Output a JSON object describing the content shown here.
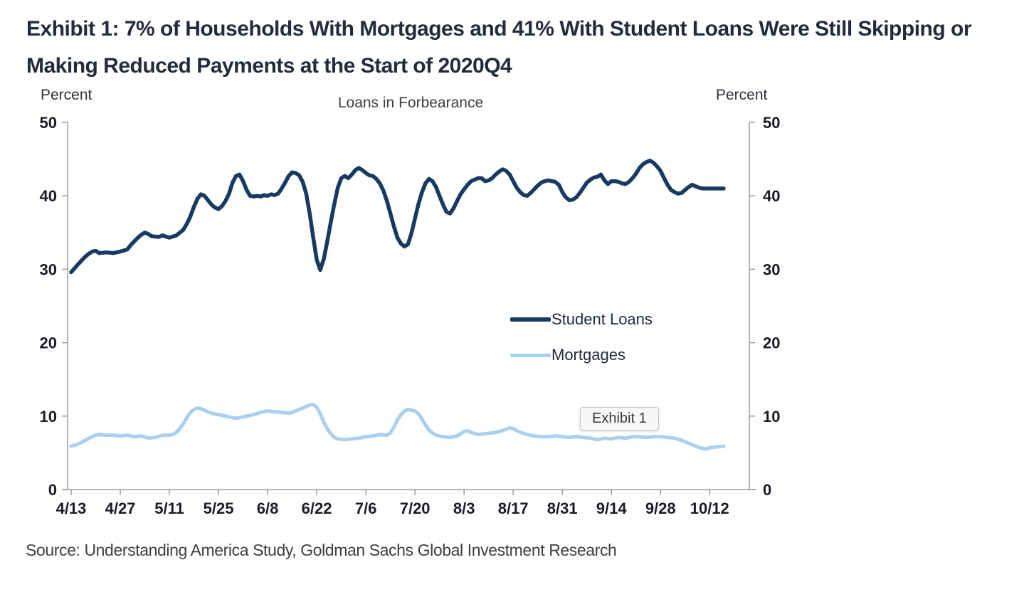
{
  "header": {
    "title_line1": "Exhibit 1: 7% of Households With Mortgages and 41% With Student Loans Were Still Skipping or",
    "title_line2": "Making Reduced Payments at the Start of 2020Q4"
  },
  "overlay": {
    "tooltip_label": "Exhibit 1"
  },
  "footer": {
    "source": "Source: Understanding America Study, Goldman Sachs Global Investment Research"
  },
  "chart_data": {
    "type": "line",
    "title": "Loans in Forbearance",
    "left_axis_label": "Percent",
    "right_axis_label": "Percent",
    "ylim": [
      0,
      50
    ],
    "y_ticks": [
      0,
      10,
      20,
      30,
      40,
      50
    ],
    "x_ticks": [
      {
        "label": "4/13",
        "day": 0
      },
      {
        "label": "4/27",
        "day": 14
      },
      {
        "label": "5/11",
        "day": 28
      },
      {
        "label": "5/25",
        "day": 42
      },
      {
        "label": "6/8",
        "day": 56
      },
      {
        "label": "6/22",
        "day": 70
      },
      {
        "label": "7/6",
        "day": 84
      },
      {
        "label": "7/20",
        "day": 98
      },
      {
        "label": "8/3",
        "day": 112
      },
      {
        "label": "8/17",
        "day": 126
      },
      {
        "label": "8/31",
        "day": 140
      },
      {
        "label": "9/14",
        "day": 154
      },
      {
        "label": "9/28",
        "day": 168
      },
      {
        "label": "10/12",
        "day": 182
      }
    ],
    "grid": false,
    "legend_position": "inside-right",
    "axis_color": "#9c9c9c",
    "tick_label_color": "#1b1b27",
    "series": [
      {
        "name": "Student Loans",
        "color": "#173A62",
        "width": 5.5,
        "points": [
          [
            0,
            29.6
          ],
          [
            2,
            30.7
          ],
          [
            4,
            31.7
          ],
          [
            5,
            32.1
          ],
          [
            6,
            32.4
          ],
          [
            7,
            32.5
          ],
          [
            8,
            32.2
          ],
          [
            10,
            32.3
          ],
          [
            12,
            32.2
          ],
          [
            14,
            32.4
          ],
          [
            16,
            32.7
          ],
          [
            17,
            33.3
          ],
          [
            18,
            33.8
          ],
          [
            19,
            34.3
          ],
          [
            20,
            34.7
          ],
          [
            21,
            35.0
          ],
          [
            22,
            34.8
          ],
          [
            23,
            34.5
          ],
          [
            25,
            34.4
          ],
          [
            26,
            34.6
          ],
          [
            28,
            34.3
          ],
          [
            30,
            34.6
          ],
          [
            32,
            35.4
          ],
          [
            33,
            36.2
          ],
          [
            34,
            37.2
          ],
          [
            35,
            38.5
          ],
          [
            36,
            39.6
          ],
          [
            37,
            40.2
          ],
          [
            38,
            40.0
          ],
          [
            39,
            39.4
          ],
          [
            40,
            38.8
          ],
          [
            41,
            38.4
          ],
          [
            42,
            38.2
          ],
          [
            43,
            38.6
          ],
          [
            44,
            39.3
          ],
          [
            45,
            40.3
          ],
          [
            46,
            41.8
          ],
          [
            47,
            42.7
          ],
          [
            48,
            42.9
          ],
          [
            49,
            42.0
          ],
          [
            50,
            40.8
          ],
          [
            51,
            40.0
          ],
          [
            52,
            39.9
          ],
          [
            53,
            40.0
          ],
          [
            54,
            39.9
          ],
          [
            55,
            40.1
          ],
          [
            56,
            40.0
          ],
          [
            57,
            40.2
          ],
          [
            58,
            40.1
          ],
          [
            59,
            40.3
          ],
          [
            60,
            41.0
          ],
          [
            61,
            41.8
          ],
          [
            62,
            42.7
          ],
          [
            63,
            43.2
          ],
          [
            64,
            43.1
          ],
          [
            65,
            42.8
          ],
          [
            66,
            41.9
          ],
          [
            67,
            40.3
          ],
          [
            68,
            37.6
          ],
          [
            69,
            34.3
          ],
          [
            70,
            31.3
          ],
          [
            71,
            29.9
          ],
          [
            72,
            31.4
          ],
          [
            73,
            33.8
          ],
          [
            74,
            36.4
          ],
          [
            75,
            38.9
          ],
          [
            76,
            41.1
          ],
          [
            77,
            42.4
          ],
          [
            78,
            42.7
          ],
          [
            79,
            42.4
          ],
          [
            80,
            42.9
          ],
          [
            81,
            43.5
          ],
          [
            82,
            43.8
          ],
          [
            83,
            43.5
          ],
          [
            84,
            43.1
          ],
          [
            85,
            42.8
          ],
          [
            86,
            42.7
          ],
          [
            87,
            42.3
          ],
          [
            88,
            41.7
          ],
          [
            89,
            40.7
          ],
          [
            90,
            39.3
          ],
          [
            91,
            37.6
          ],
          [
            92,
            35.8
          ],
          [
            93,
            34.3
          ],
          [
            94,
            33.5
          ],
          [
            95,
            33.1
          ],
          [
            96,
            33.4
          ],
          [
            97,
            34.9
          ],
          [
            98,
            36.9
          ],
          [
            99,
            38.9
          ],
          [
            100,
            40.5
          ],
          [
            101,
            41.7
          ],
          [
            102,
            42.3
          ],
          [
            103,
            42.0
          ],
          [
            104,
            41.2
          ],
          [
            105,
            40.0
          ],
          [
            106,
            38.8
          ],
          [
            107,
            37.8
          ],
          [
            108,
            37.6
          ],
          [
            109,
            38.3
          ],
          [
            110,
            39.3
          ],
          [
            111,
            40.2
          ],
          [
            112,
            40.9
          ],
          [
            113,
            41.5
          ],
          [
            114,
            42.0
          ],
          [
            115,
            42.2
          ],
          [
            116,
            42.4
          ],
          [
            117,
            42.4
          ],
          [
            118,
            42.0
          ],
          [
            119,
            42.1
          ],
          [
            120,
            42.4
          ],
          [
            121,
            42.9
          ],
          [
            122,
            43.3
          ],
          [
            123,
            43.6
          ],
          [
            124,
            43.4
          ],
          [
            125,
            42.9
          ],
          [
            126,
            42.0
          ],
          [
            127,
            41.1
          ],
          [
            128,
            40.5
          ],
          [
            129,
            40.1
          ],
          [
            130,
            40.0
          ],
          [
            131,
            40.4
          ],
          [
            132,
            40.9
          ],
          [
            133,
            41.4
          ],
          [
            134,
            41.8
          ],
          [
            135,
            42.0
          ],
          [
            136,
            42.1
          ],
          [
            137,
            42.0
          ],
          [
            138,
            41.9
          ],
          [
            139,
            41.5
          ],
          [
            140,
            40.5
          ],
          [
            141,
            39.8
          ],
          [
            142,
            39.4
          ],
          [
            143,
            39.5
          ],
          [
            144,
            39.8
          ],
          [
            145,
            40.4
          ],
          [
            146,
            41.1
          ],
          [
            147,
            41.8
          ],
          [
            148,
            42.2
          ],
          [
            149,
            42.5
          ],
          [
            150,
            42.6
          ],
          [
            151,
            42.9
          ],
          [
            152,
            42.1
          ],
          [
            153,
            41.6
          ],
          [
            154,
            42.0
          ],
          [
            155,
            42.0
          ],
          [
            156,
            41.9
          ],
          [
            157,
            41.7
          ],
          [
            158,
            41.6
          ],
          [
            159,
            41.9
          ],
          [
            160,
            42.4
          ],
          [
            161,
            43.0
          ],
          [
            162,
            43.8
          ],
          [
            163,
            44.3
          ],
          [
            164,
            44.6
          ],
          [
            165,
            44.8
          ],
          [
            166,
            44.5
          ],
          [
            167,
            44.0
          ],
          [
            168,
            43.4
          ],
          [
            169,
            42.4
          ],
          [
            170,
            41.5
          ],
          [
            171,
            40.8
          ],
          [
            172,
            40.5
          ],
          [
            173,
            40.3
          ],
          [
            174,
            40.4
          ],
          [
            175,
            40.8
          ],
          [
            176,
            41.2
          ],
          [
            177,
            41.5
          ],
          [
            178,
            41.3
          ],
          [
            179,
            41.1
          ],
          [
            180,
            41.0
          ],
          [
            182,
            41.0
          ],
          [
            184,
            41.0
          ],
          [
            186,
            41.0
          ]
        ]
      },
      {
        "name": "Mortgages",
        "color": "#A9D0EE",
        "width": 5,
        "points": [
          [
            0,
            5.9
          ],
          [
            2,
            6.2
          ],
          [
            4,
            6.7
          ],
          [
            6,
            7.2
          ],
          [
            7,
            7.4
          ],
          [
            8,
            7.5
          ],
          [
            10,
            7.4
          ],
          [
            12,
            7.4
          ],
          [
            14,
            7.3
          ],
          [
            16,
            7.4
          ],
          [
            18,
            7.2
          ],
          [
            20,
            7.3
          ],
          [
            22,
            7.0
          ],
          [
            24,
            7.1
          ],
          [
            26,
            7.4
          ],
          [
            28,
            7.4
          ],
          [
            29,
            7.5
          ],
          [
            30,
            7.8
          ],
          [
            31,
            8.3
          ],
          [
            32,
            9.0
          ],
          [
            33,
            9.8
          ],
          [
            34,
            10.5
          ],
          [
            35,
            10.9
          ],
          [
            36,
            11.1
          ],
          [
            37,
            11.0
          ],
          [
            38,
            10.8
          ],
          [
            40,
            10.4
          ],
          [
            42,
            10.2
          ],
          [
            44,
            10.0
          ],
          [
            46,
            9.8
          ],
          [
            47,
            9.7
          ],
          [
            48,
            9.8
          ],
          [
            50,
            10.0
          ],
          [
            52,
            10.2
          ],
          [
            54,
            10.5
          ],
          [
            56,
            10.7
          ],
          [
            58,
            10.6
          ],
          [
            60,
            10.5
          ],
          [
            62,
            10.4
          ],
          [
            63,
            10.5
          ],
          [
            64,
            10.7
          ],
          [
            66,
            11.1
          ],
          [
            67,
            11.3
          ],
          [
            68,
            11.5
          ],
          [
            69,
            11.6
          ],
          [
            70,
            11.2
          ],
          [
            71,
            10.3
          ],
          [
            72,
            9.2
          ],
          [
            73,
            8.3
          ],
          [
            74,
            7.6
          ],
          [
            75,
            7.1
          ],
          [
            76,
            6.9
          ],
          [
            78,
            6.8
          ],
          [
            80,
            6.9
          ],
          [
            82,
            7.0
          ],
          [
            84,
            7.2
          ],
          [
            86,
            7.3
          ],
          [
            88,
            7.5
          ],
          [
            90,
            7.4
          ],
          [
            91,
            7.7
          ],
          [
            92,
            8.5
          ],
          [
            93,
            9.5
          ],
          [
            94,
            10.2
          ],
          [
            95,
            10.7
          ],
          [
            96,
            10.9
          ],
          [
            97,
            10.8
          ],
          [
            98,
            10.7
          ],
          [
            99,
            10.3
          ],
          [
            100,
            9.6
          ],
          [
            101,
            8.8
          ],
          [
            102,
            8.1
          ],
          [
            103,
            7.7
          ],
          [
            104,
            7.4
          ],
          [
            106,
            7.2
          ],
          [
            108,
            7.1
          ],
          [
            110,
            7.3
          ],
          [
            111,
            7.6
          ],
          [
            112,
            7.9
          ],
          [
            113,
            8.0
          ],
          [
            114,
            7.8
          ],
          [
            115,
            7.6
          ],
          [
            116,
            7.5
          ],
          [
            118,
            7.6
          ],
          [
            120,
            7.7
          ],
          [
            122,
            7.9
          ],
          [
            124,
            8.2
          ],
          [
            125,
            8.4
          ],
          [
            126,
            8.3
          ],
          [
            127,
            8.0
          ],
          [
            128,
            7.8
          ],
          [
            130,
            7.5
          ],
          [
            132,
            7.3
          ],
          [
            134,
            7.2
          ],
          [
            136,
            7.2
          ],
          [
            138,
            7.3
          ],
          [
            140,
            7.2
          ],
          [
            142,
            7.1
          ],
          [
            144,
            7.2
          ],
          [
            146,
            7.1
          ],
          [
            148,
            7.0
          ],
          [
            150,
            6.8
          ],
          [
            152,
            7.0
          ],
          [
            154,
            6.9
          ],
          [
            156,
            7.1
          ],
          [
            158,
            7.0
          ],
          [
            160,
            7.2
          ],
          [
            162,
            7.2
          ],
          [
            164,
            7.1
          ],
          [
            166,
            7.2
          ],
          [
            168,
            7.2
          ],
          [
            170,
            7.1
          ],
          [
            172,
            7.0
          ],
          [
            174,
            6.7
          ],
          [
            176,
            6.3
          ],
          [
            178,
            5.9
          ],
          [
            180,
            5.6
          ],
          [
            181,
            5.5
          ],
          [
            182,
            5.7
          ],
          [
            184,
            5.8
          ],
          [
            186,
            5.9
          ]
        ]
      }
    ]
  }
}
